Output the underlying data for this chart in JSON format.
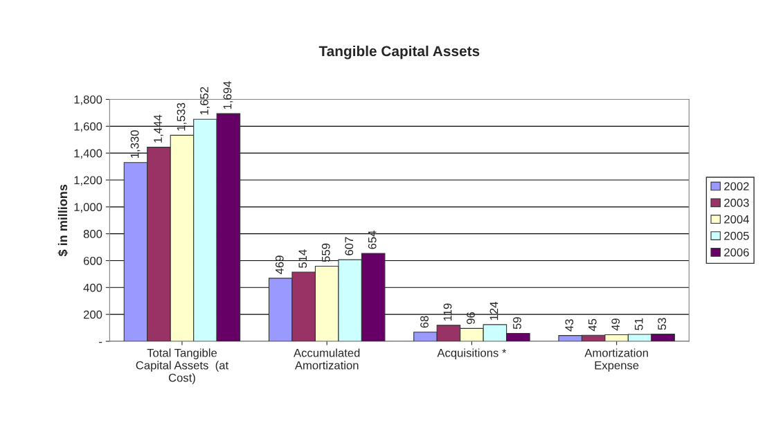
{
  "chart_data": {
    "type": "bar",
    "title": "Tangible Capital Assets",
    "ylabel": "$ in millions",
    "categories": [
      "Total Tangible\nCapital Assets  (at\nCost)",
      "Accumulated\nAmortization",
      "Acquisitions *",
      "Amortization\nExpense"
    ],
    "series": [
      {
        "name": "2002",
        "color": "#9999ff",
        "values": [
          1330,
          469,
          68,
          43
        ],
        "value_labels": [
          "1,330",
          "469",
          "68",
          "43"
        ]
      },
      {
        "name": "2003",
        "color": "#993366",
        "values": [
          1444,
          514,
          119,
          45
        ],
        "value_labels": [
          "1,444",
          "514",
          "119",
          "45"
        ]
      },
      {
        "name": "2004",
        "color": "#ffffcc",
        "values": [
          1533,
          559,
          96,
          49
        ],
        "value_labels": [
          "1,533",
          "559",
          "96",
          "49"
        ]
      },
      {
        "name": "2005",
        "color": "#ccffff",
        "values": [
          1652,
          607,
          124,
          51
        ],
        "value_labels": [
          "1,652",
          "607",
          "124",
          "51"
        ]
      },
      {
        "name": "2006",
        "color": "#660066",
        "values": [
          1694,
          654,
          59,
          53
        ],
        "value_labels": [
          "1,694",
          "654",
          "59",
          "53"
        ]
      }
    ],
    "ylim": [
      0,
      1800
    ],
    "yticks": [
      {
        "value": 0,
        "label": "-"
      },
      {
        "value": 200,
        "label": "200"
      },
      {
        "value": 400,
        "label": "400"
      },
      {
        "value": 600,
        "label": "600"
      },
      {
        "value": 800,
        "label": "800"
      },
      {
        "value": 1000,
        "label": "1,000"
      },
      {
        "value": 1200,
        "label": "1,200"
      },
      {
        "value": 1400,
        "label": "1,400"
      },
      {
        "value": 1600,
        "label": "1,600"
      },
      {
        "value": 1800,
        "label": "1,800"
      }
    ],
    "grid": "y",
    "legend": "right"
  }
}
